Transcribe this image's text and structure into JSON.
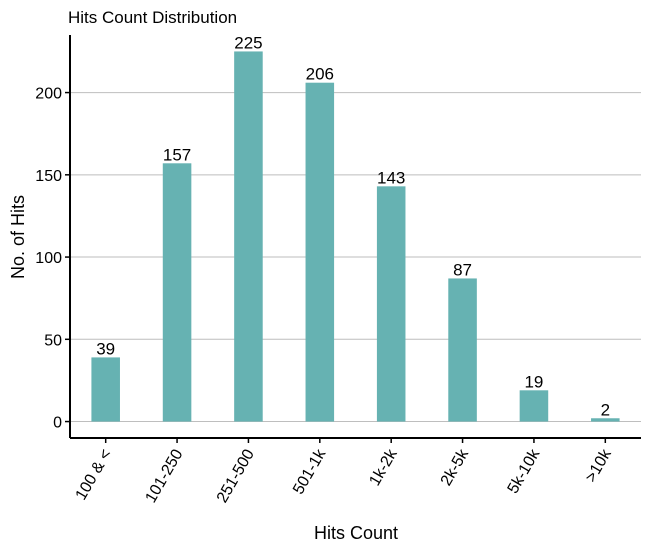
{
  "chart_data": {
    "type": "bar",
    "title": "Hits Count Distribution",
    "xlabel": "Hits Count",
    "ylabel": "No. of Hits",
    "categories": [
      "100 & <",
      "101-250",
      "251-500",
      "501-1k",
      "1k-2k",
      "2k-5k",
      "5k-10k",
      ">10k"
    ],
    "values": [
      39,
      157,
      225,
      206,
      143,
      87,
      19,
      2
    ],
    "ylim": [
      -10,
      235
    ],
    "yticks": [
      0,
      50,
      100,
      150,
      200
    ],
    "grid": "horizontal major",
    "bar_color": "#66b2b2",
    "grid_color": "#bebebe",
    "data_labels": true
  }
}
